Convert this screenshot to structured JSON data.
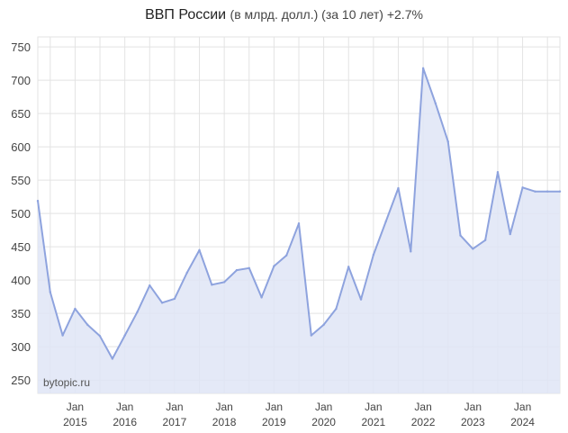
{
  "title": {
    "main": "ВВП России",
    "sub": "(в млрд. долл.) (за 10 лет) +2.7%"
  },
  "watermark": "bytopic.ru",
  "chart_data": {
    "type": "area",
    "ylim": [
      230,
      765
    ],
    "xlim": [
      2014.25,
      2024.75
    ],
    "y_ticks": [
      250,
      300,
      350,
      400,
      450,
      500,
      550,
      600,
      650,
      700,
      750
    ],
    "x_ticks": [
      {
        "x": 2015,
        "month": "Jan",
        "year": "2015"
      },
      {
        "x": 2016,
        "month": "Jan",
        "year": "2016"
      },
      {
        "x": 2017,
        "month": "Jan",
        "year": "2017"
      },
      {
        "x": 2018,
        "month": "Jan",
        "year": "2018"
      },
      {
        "x": 2019,
        "month": "Jan",
        "year": "2019"
      },
      {
        "x": 2020,
        "month": "Jan",
        "year": "2020"
      },
      {
        "x": 2021,
        "month": "Jan",
        "year": "2021"
      },
      {
        "x": 2022,
        "month": "Jan",
        "year": "2022"
      },
      {
        "x": 2023,
        "month": "Jan",
        "year": "2023"
      },
      {
        "x": 2024,
        "month": "Jan",
        "year": "2024"
      }
    ],
    "grid": true,
    "colors": {
      "line": "#8ea3de",
      "fill": "#dfe5f6",
      "grid": "#e3e3e3"
    },
    "x": [
      2014.25,
      2014.5,
      2014.75,
      2015.0,
      2015.25,
      2015.5,
      2015.75,
      2016.0,
      2016.25,
      2016.5,
      2016.75,
      2017.0,
      2017.25,
      2017.5,
      2017.75,
      2018.0,
      2018.25,
      2018.5,
      2018.75,
      2019.0,
      2019.25,
      2019.5,
      2019.75,
      2020.0,
      2020.25,
      2020.5,
      2020.75,
      2021.0,
      2021.25,
      2021.5,
      2021.75,
      2022.0,
      2022.25,
      2022.5,
      2022.75,
      2023.0,
      2023.25,
      2023.5,
      2023.75,
      2024.0,
      2024.25,
      2024.5,
      2024.75
    ],
    "values": [
      519,
      382,
      317,
      357,
      333,
      316,
      282,
      317,
      352,
      392,
      366,
      372,
      411,
      445,
      393,
      397,
      415,
      418,
      374,
      421,
      437,
      485,
      317,
      333,
      357,
      420,
      371,
      438,
      488,
      538,
      443,
      718,
      665,
      608,
      467,
      447,
      460,
      562,
      469,
      539,
      533,
      533,
      533
    ]
  }
}
